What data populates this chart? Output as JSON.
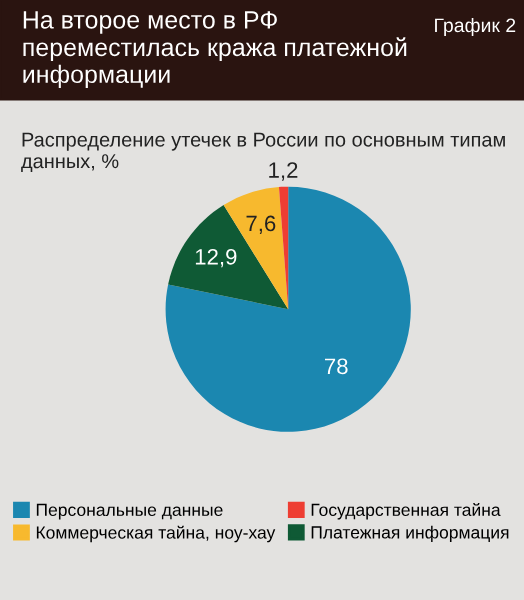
{
  "chart_data": {
    "type": "pie",
    "title": "На второе место в РФ переместилась кража платежной информации",
    "subtitle": "Распределение утечек в России по основным типам данных, %",
    "annotations": [
      "График 2"
    ],
    "categories": [
      "Персональные данные",
      "Платежная информация",
      "Коммерческая тайна, ноу-хау",
      "Государственная тайна"
    ],
    "values": [
      78,
      12.9,
      7.6,
      1.2
    ],
    "value_labels": [
      "78",
      "12,9",
      "7,6",
      "1,2"
    ],
    "colors": [
      "#1b87b0",
      "#0f5a35",
      "#f7b92e",
      "#ee3e33"
    ],
    "legend": "bottom"
  }
}
